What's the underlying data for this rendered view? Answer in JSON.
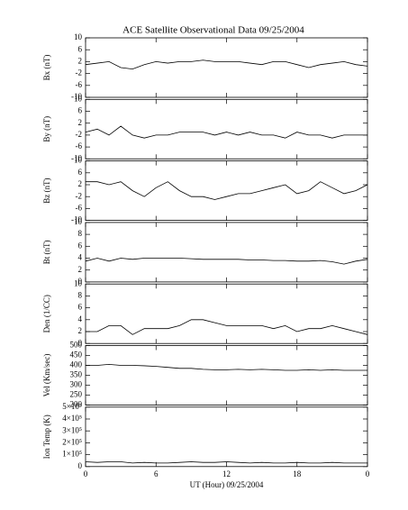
{
  "chart_data": [
    {
      "type": "line",
      "title": "ACE Satellite Observational Data   09/25/2004",
      "ylabel": "Bx (nT)",
      "color": "#000000",
      "x": [
        0,
        1,
        2,
        3,
        4,
        5,
        6,
        7,
        8,
        9,
        10,
        11,
        12,
        13,
        14,
        15,
        16,
        17,
        18,
        19,
        20,
        21,
        22,
        23,
        24
      ],
      "values": [
        1,
        1.5,
        2,
        0,
        -0.5,
        1,
        2,
        1.5,
        2,
        2,
        2.5,
        2,
        2,
        2,
        1.5,
        1,
        2,
        2,
        1,
        0,
        1,
        1.5,
        2,
        1,
        0.5
      ],
      "xlim": [
        0,
        24
      ],
      "ylim": [
        -10,
        10
      ],
      "yticks": [
        -10,
        -6,
        -2,
        2,
        6,
        10
      ]
    },
    {
      "type": "line",
      "ylabel": "By (nT)",
      "color": "#000000",
      "x": [
        0,
        1,
        2,
        3,
        4,
        5,
        6,
        7,
        8,
        9,
        10,
        11,
        12,
        13,
        14,
        15,
        16,
        17,
        18,
        19,
        20,
        21,
        22,
        23,
        24
      ],
      "values": [
        -1,
        0,
        -2,
        1,
        -2,
        -3,
        -2,
        -2,
        -1,
        -1,
        -1,
        -2,
        -1,
        -2,
        -1,
        -2,
        -2,
        -3,
        -1,
        -2,
        -2,
        -3,
        -2,
        -2,
        -2
      ],
      "xlim": [
        0,
        24
      ],
      "ylim": [
        -10,
        10
      ],
      "yticks": [
        -10,
        -6,
        -2,
        2,
        6,
        10
      ]
    },
    {
      "type": "line",
      "ylabel": "Bz (nT)",
      "color": "#000000",
      "x": [
        0,
        1,
        2,
        3,
        4,
        5,
        6,
        7,
        8,
        9,
        10,
        11,
        12,
        13,
        14,
        15,
        16,
        17,
        18,
        19,
        20,
        21,
        22,
        23,
        24
      ],
      "values": [
        3,
        3,
        2,
        3,
        0,
        -2,
        1,
        3,
        0,
        -2,
        -2,
        -3,
        -2,
        -1,
        -1,
        0,
        1,
        2,
        -1,
        0,
        3,
        1,
        -1,
        0,
        2
      ],
      "xlim": [
        0,
        24
      ],
      "ylim": [
        -10,
        10
      ],
      "yticks": [
        -10,
        -6,
        -2,
        2,
        6,
        10
      ]
    },
    {
      "type": "line",
      "ylabel": "Bt (nT)",
      "color": "#000000",
      "x": [
        0,
        1,
        2,
        3,
        4,
        5,
        6,
        7,
        8,
        9,
        10,
        11,
        12,
        13,
        14,
        15,
        16,
        17,
        18,
        19,
        20,
        21,
        22,
        23,
        24
      ],
      "values": [
        3.5,
        4,
        3.5,
        4,
        3.8,
        4,
        4,
        4,
        4,
        3.9,
        3.8,
        3.8,
        3.8,
        3.8,
        3.7,
        3.7,
        3.6,
        3.6,
        3.5,
        3.5,
        3.6,
        3.4,
        3,
        3.5,
        3.8
      ],
      "xlim": [
        0,
        24
      ],
      "ylim": [
        0,
        10
      ],
      "yticks": [
        0,
        2,
        4,
        6,
        8,
        10
      ]
    },
    {
      "type": "line",
      "ylabel": "Den (1/CC)",
      "color": "#000000",
      "x": [
        0,
        1,
        2,
        3,
        4,
        5,
        6,
        7,
        8,
        9,
        10,
        11,
        12,
        13,
        14,
        15,
        16,
        17,
        18,
        19,
        20,
        21,
        22,
        23,
        24
      ],
      "values": [
        2,
        2,
        3,
        3,
        1.5,
        2.5,
        2.5,
        2.5,
        3,
        4,
        4,
        3.5,
        3,
        3,
        3,
        3,
        2.5,
        3,
        2,
        2.5,
        2.5,
        3,
        2.5,
        2,
        1.5
      ],
      "xlim": [
        0,
        24
      ],
      "ylim": [
        0,
        10
      ],
      "yticks": [
        0,
        2,
        4,
        6,
        8,
        10
      ]
    },
    {
      "type": "line",
      "ylabel": "Vel (Km/sec)",
      "color": "#000000",
      "x": [
        0,
        1,
        2,
        3,
        4,
        5,
        6,
        7,
        8,
        9,
        10,
        11,
        12,
        13,
        14,
        15,
        16,
        17,
        18,
        19,
        20,
        21,
        22,
        23,
        24
      ],
      "values": [
        400,
        400,
        405,
        400,
        400,
        398,
        395,
        390,
        385,
        385,
        380,
        378,
        378,
        380,
        378,
        380,
        378,
        375,
        375,
        378,
        375,
        378,
        375,
        375,
        375
      ],
      "xlim": [
        0,
        24
      ],
      "ylim": [
        200,
        500
      ],
      "yticks": [
        200,
        250,
        300,
        350,
        400,
        450,
        500
      ]
    },
    {
      "type": "line",
      "ylabel": "Ion Temp (K)",
      "xlabel": "UT (Hour)  09/25/2004",
      "color": "#000000",
      "x": [
        0,
        1,
        2,
        3,
        4,
        5,
        6,
        7,
        8,
        9,
        10,
        11,
        12,
        13,
        14,
        15,
        16,
        17,
        18,
        19,
        20,
        21,
        22,
        23,
        24
      ],
      "values": [
        40000,
        35000,
        40000,
        40000,
        30000,
        35000,
        30000,
        30000,
        35000,
        40000,
        35000,
        35000,
        40000,
        35000,
        30000,
        35000,
        30000,
        30000,
        35000,
        30000,
        30000,
        35000,
        30000,
        30000,
        30000
      ],
      "xlim": [
        0,
        24
      ],
      "xticks": [
        0,
        6,
        12,
        18,
        {
          "value": 24,
          "label": "0"
        }
      ],
      "ylim": [
        0,
        500000
      ],
      "yticks": [
        0,
        {
          "value": 100000,
          "label": "1×10⁵"
        },
        {
          "value": 200000,
          "label": "2×10⁵"
        },
        {
          "value": 300000,
          "label": "3×10⁵"
        },
        {
          "value": 400000,
          "label": "4×10⁵"
        },
        {
          "value": 500000,
          "label": "5×10⁵"
        }
      ]
    }
  ]
}
